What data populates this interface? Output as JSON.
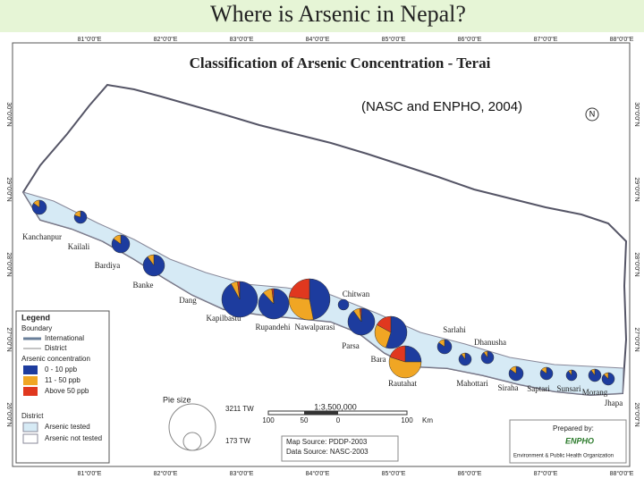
{
  "header": {
    "title": "Where is Arsenic in Nepal?"
  },
  "map": {
    "title": "Classification of Arsenic Concentration - Terai",
    "subtitle": "(NASC and ENPHO, 2004)",
    "north": "N",
    "longitudes": [
      "81°0'0\"E",
      "82°0'0\"E",
      "83°0'0\"E",
      "84°0'0\"E",
      "85°0'0\"E",
      "86°0'0\"E",
      "87°0'0\"E",
      "88°0'0\"E"
    ],
    "latitudes": [
      "30°0'0\"N",
      "29°0'0\"N",
      "28°0'0\"N",
      "27°0'0\"N",
      "26°0'0\"N"
    ],
    "districts": [
      {
        "name": "Kanchanpur",
        "shares": [
          85,
          15,
          0
        ]
      },
      {
        "name": "Kailali",
        "shares": [
          80,
          20,
          0
        ]
      },
      {
        "name": "Bardiya",
        "shares": [
          85,
          15,
          0
        ]
      },
      {
        "name": "Banke",
        "shares": [
          90,
          10,
          0
        ]
      },
      {
        "name": "Dang"
      },
      {
        "name": "Kapilbastu",
        "shares": [
          92,
          6,
          2
        ]
      },
      {
        "name": "Rupandehi",
        "shares": [
          88,
          10,
          2
        ]
      },
      {
        "name": "Nawalparasi",
        "shares": [
          47,
          30,
          23
        ]
      },
      {
        "name": "Chitwan",
        "shares": [
          100,
          0,
          0
        ]
      },
      {
        "name": "Parsa",
        "shares": [
          90,
          8,
          2
        ]
      },
      {
        "name": "Bara",
        "shares": [
          55,
          28,
          17
        ]
      },
      {
        "name": "Rautahat",
        "shares": [
          25,
          55,
          20
        ]
      },
      {
        "name": "Sarlahi",
        "shares": [
          85,
          15,
          0
        ]
      },
      {
        "name": "Mahottari",
        "shares": [
          90,
          10,
          0
        ]
      },
      {
        "name": "Dhanusha",
        "shares": [
          90,
          10,
          0
        ]
      },
      {
        "name": "Siraha",
        "shares": [
          85,
          15,
          0
        ]
      },
      {
        "name": "Saptari",
        "shares": [
          85,
          15,
          0
        ]
      },
      {
        "name": "Sunsari",
        "shares": [
          90,
          10,
          0
        ]
      },
      {
        "name": "Morang",
        "shares": [
          90,
          10,
          0
        ]
      },
      {
        "name": "Jhapa",
        "shares": [
          88,
          12,
          0
        ]
      }
    ]
  },
  "legend": {
    "title": "Legend",
    "boundary": "Boundary",
    "international": "International",
    "district": "District",
    "concentration": "Arsenic concentration",
    "classes": [
      {
        "label": "0 - 10 ppb",
        "color": "#1d3c9e"
      },
      {
        "label": "11 - 50 ppb",
        "color": "#f0a624"
      },
      {
        "label": "Above 50 ppb",
        "color": "#e0381f"
      }
    ],
    "pie_size": "Pie size",
    "pie_max": "3211 TW",
    "pie_min": "173 TW",
    "district_title": "District",
    "tested": "Arsenic tested",
    "not_tested": "Arsenic not tested"
  },
  "scale": {
    "ratio": "1:3,500,000",
    "ticks": [
      "100",
      "50",
      "0",
      "100"
    ],
    "unit": "Km"
  },
  "sources": [
    "Map Source: PDDP-2003",
    "Data Source: NASC-2003"
  ],
  "credit": {
    "prepared": "Prepared by:",
    "org": "ENPHO",
    "org_full": "Environment & Public Health Organization"
  }
}
